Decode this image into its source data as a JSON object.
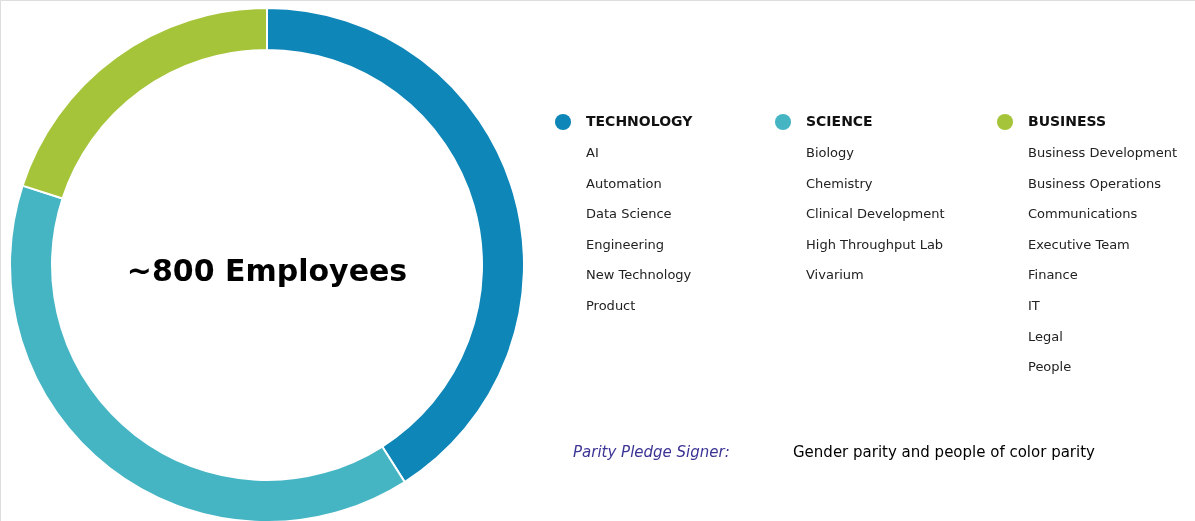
{
  "chart_data": {
    "type": "donut",
    "title": "~800 Employees",
    "categories": [
      "TECHNOLOGY",
      "SCIENCE",
      "BUSINESS"
    ],
    "values": [
      41,
      39,
      20
    ],
    "colors": [
      "#0e86b8",
      "#45b5c4",
      "#a5c43a"
    ],
    "legend": "right",
    "annotations": [
      "AI\nAutomation\nData Science\nEngineering\nNew Technology\nProduct",
      "Biology\nChemistry\nClinical Development\nHigh Throughput Lab\nVivarium",
      "Business Development\nBusiness Operations\nCommunications\nExecutive Team\nFinance\nIT\nLegal\nPeople",
      "Parity Pledge Signer:",
      "Gender parity and people of color parity"
    ]
  }
}
